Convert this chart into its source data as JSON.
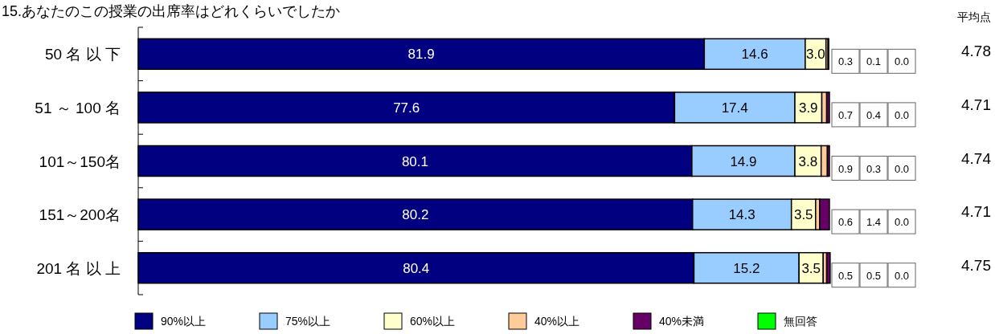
{
  "chart_data": {
    "type": "bar",
    "orientation": "horizontal",
    "stacked": true,
    "title": "15.あなたのこの授業の出席率はどれくらいでしたか",
    "categories": [
      "50 名 以 下",
      "51 ～ 100 名",
      "101～150名",
      "151～200名",
      "201 名 以 上"
    ],
    "series": [
      {
        "name": "90%以上",
        "color": "#000080",
        "values": [
          81.9,
          77.6,
          80.1,
          80.2,
          80.4
        ],
        "value_labels": [
          "81.9",
          "77.6",
          "80.1",
          "80.2",
          "80.4"
        ]
      },
      {
        "name": "75%以上",
        "color": "#99ccff",
        "values": [
          14.6,
          17.4,
          14.9,
          14.3,
          15.2
        ],
        "value_labels": [
          "14.6",
          "17.4",
          "14.9",
          "14.3",
          "15.2"
        ]
      },
      {
        "name": "60%以上",
        "color": "#ffffcc",
        "values": [
          3.0,
          3.9,
          3.8,
          3.5,
          3.5
        ],
        "value_labels": [
          "3.0",
          "3.9",
          "3.8",
          "3.5",
          "3.5"
        ]
      },
      {
        "name": "40%以上",
        "color": "#ffcc99",
        "values": [
          0.3,
          0.7,
          0.9,
          0.6,
          0.5
        ],
        "value_labels": [
          "0.3",
          "0.7",
          "0.9",
          "0.6",
          "0.5"
        ]
      },
      {
        "name": "40%未満",
        "color": "#660066",
        "values": [
          0.1,
          0.4,
          0.3,
          1.4,
          0.5
        ],
        "value_labels": [
          "0.1",
          "0.4",
          "0.3",
          "1.4",
          "0.5"
        ]
      },
      {
        "name": "無回答",
        "color": "#00ff00",
        "values": [
          0.0,
          0.0,
          0.0,
          0.0,
          0.0
        ],
        "value_labels": [
          "0.0",
          "0.0",
          "0.0",
          "0.0",
          "0.0"
        ]
      }
    ],
    "xlim": [
      0,
      100
    ],
    "tick_labels": false,
    "legend": "bottom",
    "annotations": [
      "平均点",
      "4.78",
      "4.71",
      "4.74",
      "4.71",
      "4.75"
    ]
  }
}
